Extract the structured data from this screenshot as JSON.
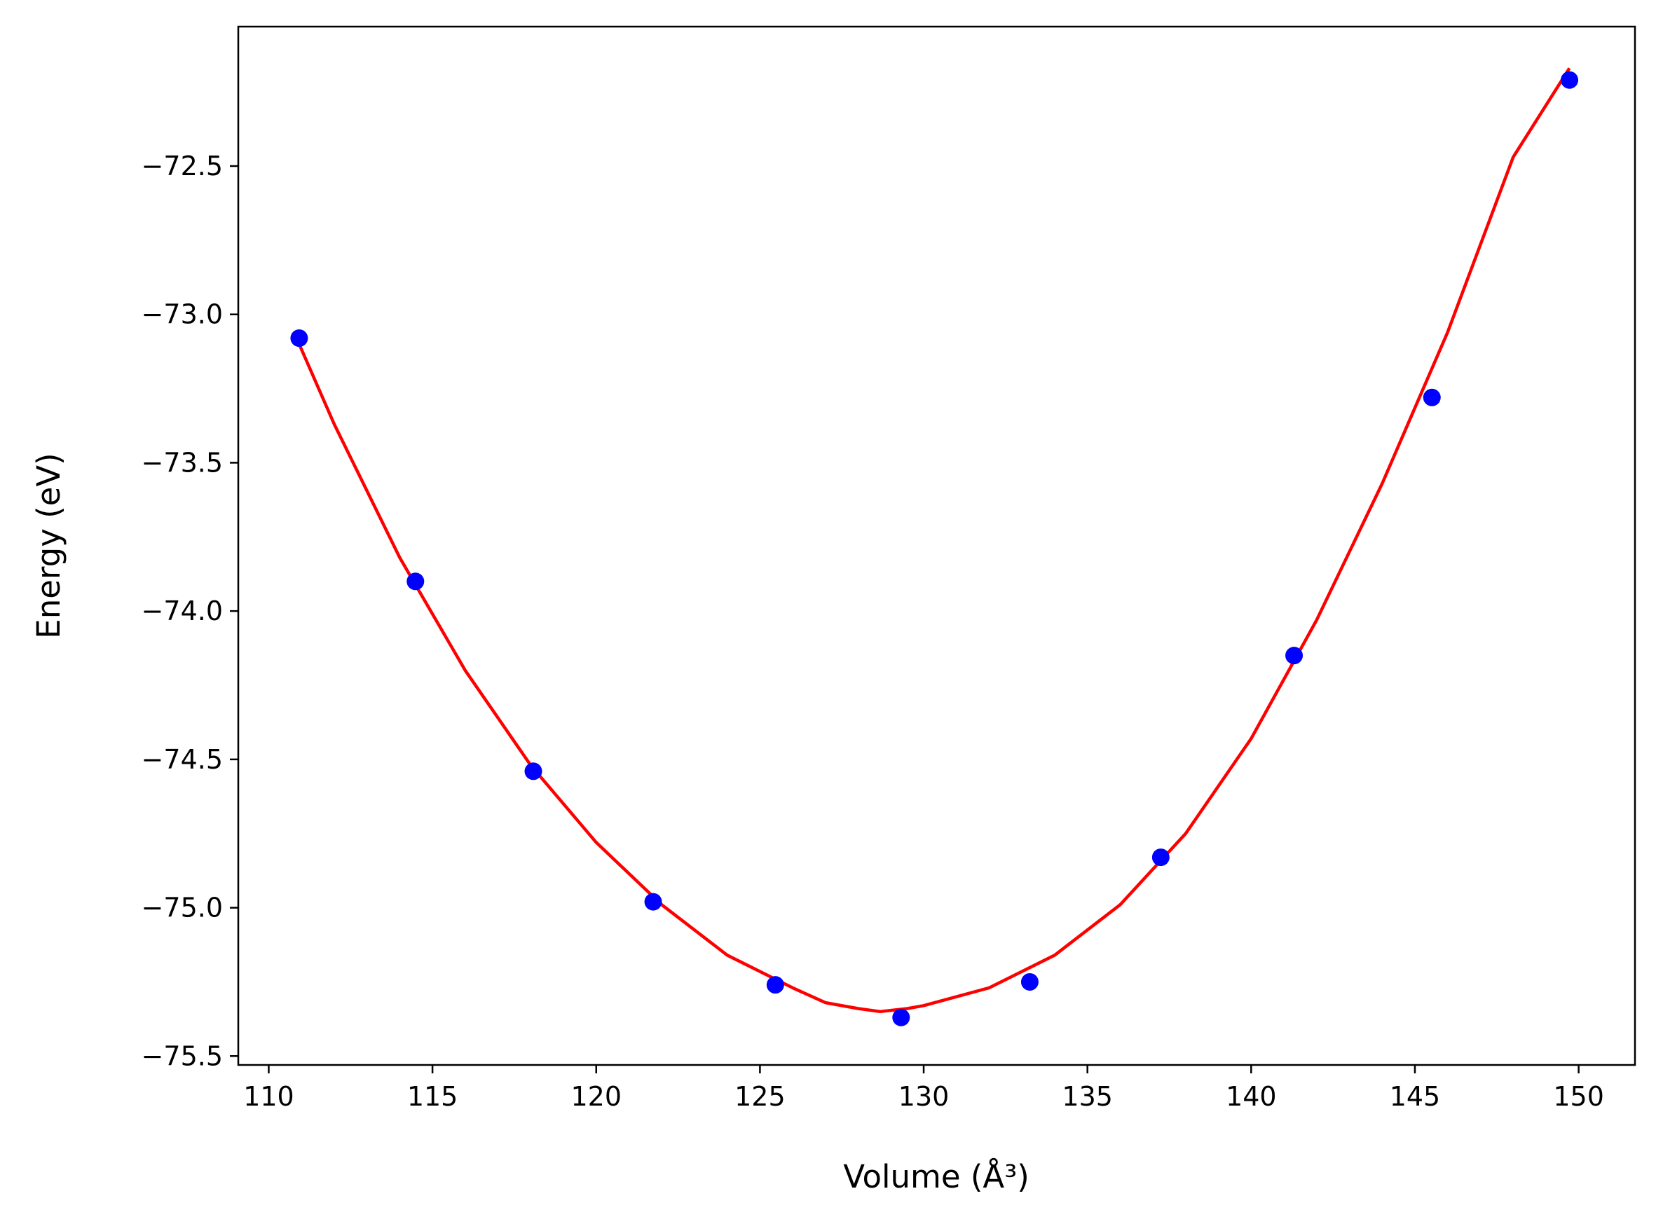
{
  "chart_data": {
    "type": "scatter",
    "title": "",
    "xlabel": "Volume (Å³)",
    "ylabel": "Energy (eV)",
    "xlim": [
      109.07,
      151.72
    ],
    "ylim": [
      -75.53,
      -72.03
    ],
    "xticks": [
      "110",
      "115",
      "120",
      "125",
      "130",
      "135",
      "140",
      "145",
      "150"
    ],
    "yticks": [
      "−75.5",
      "−75.0",
      "−74.5",
      "−74.0",
      "−73.5",
      "−73.0",
      "−72.5"
    ],
    "grid": false,
    "legend": "none",
    "series": [
      {
        "kind": "points",
        "color": "#0000ff",
        "x": [
          110.93,
          114.48,
          118.08,
          121.74,
          125.47,
          129.31,
          133.24,
          137.24,
          141.31,
          145.52,
          149.72
        ],
        "y": [
          -73.08,
          -73.9,
          -74.54,
          -74.98,
          -75.26,
          -75.37,
          -75.25,
          -74.83,
          -74.15,
          -73.28,
          -72.21
        ]
      },
      {
        "kind": "fit-line",
        "color": "#ff0000",
        "x": [
          110.93,
          112.0,
          114.0,
          116.0,
          118.0,
          120.0,
          122.0,
          124.0,
          126.0,
          127.0,
          128.0,
          128.67,
          129.5,
          130.0,
          132.0,
          134.0,
          136.0,
          138.0,
          140.0,
          142.0,
          144.0,
          146.0,
          148.0,
          149.72
        ],
        "y": [
          -73.1,
          -73.37,
          -73.82,
          -74.2,
          -74.52,
          -74.78,
          -74.99,
          -75.16,
          -75.27,
          -75.32,
          -75.34,
          -75.35,
          -75.34,
          -75.33,
          -75.27,
          -75.16,
          -74.99,
          -74.75,
          -74.43,
          -74.03,
          -73.57,
          -73.06,
          -72.47,
          -72.17
        ]
      }
    ]
  }
}
